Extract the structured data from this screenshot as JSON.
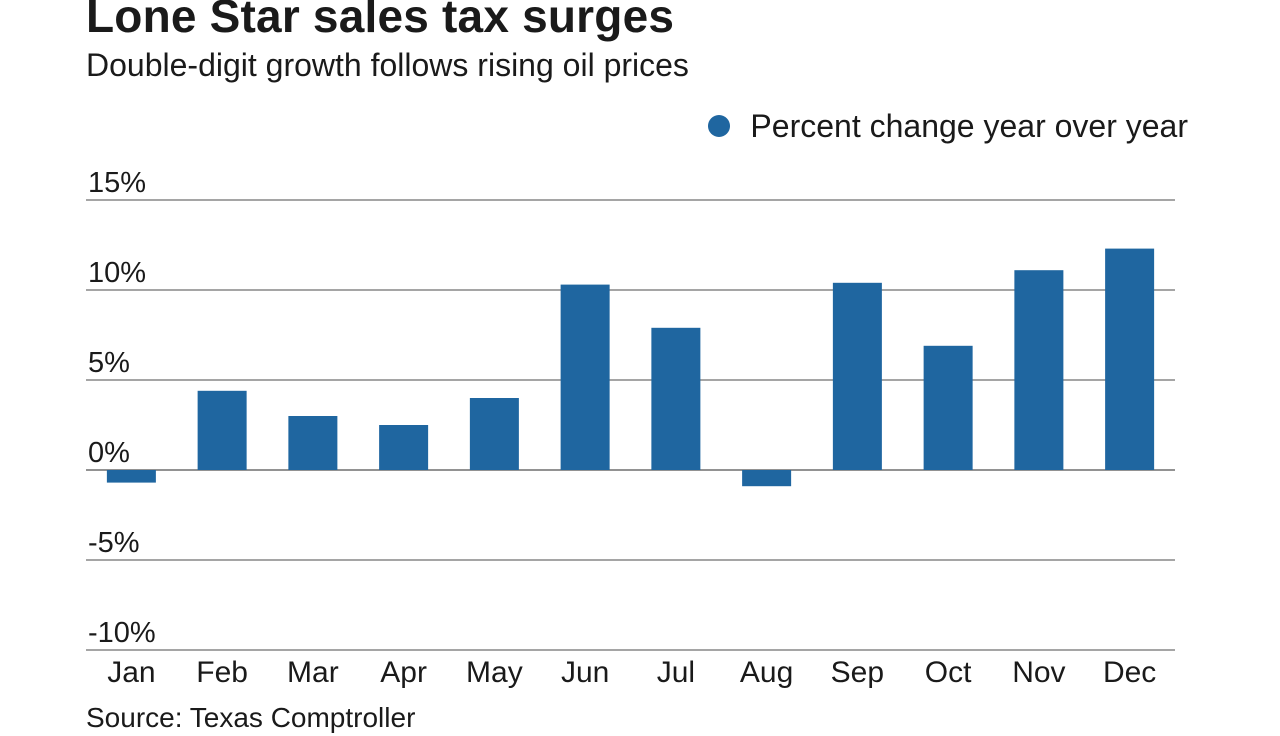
{
  "header": {
    "title": "Lone Star sales tax surges",
    "subtitle": "Double-digit growth follows rising oil prices"
  },
  "legend": {
    "label": "Percent change year over year"
  },
  "source": "Source: Texas Comptroller",
  "colors": {
    "bar": "#1f66a0",
    "grid": "#6f6f6f",
    "text": "#1a1a1a"
  },
  "chart_data": {
    "type": "bar",
    "title": "Lone Star sales tax surges",
    "subtitle": "Double-digit growth follows rising oil prices",
    "xlabel": "",
    "ylabel": "",
    "ylim": [
      -10,
      15
    ],
    "yticks": [
      15,
      10,
      5,
      0,
      -5,
      -10
    ],
    "ytick_labels": [
      "15%",
      "10%",
      "5%",
      "0%",
      "-5%",
      "-10%"
    ],
    "grid": true,
    "legend_position": "top-right",
    "categories": [
      "Jan",
      "Feb",
      "Mar",
      "Apr",
      "May",
      "Jun",
      "Jul",
      "Aug",
      "Sep",
      "Oct",
      "Nov",
      "Dec"
    ],
    "series": [
      {
        "name": "Percent change year over year",
        "values": [
          -0.7,
          4.4,
          3.0,
          2.5,
          4.0,
          10.3,
          7.9,
          -0.9,
          10.4,
          6.9,
          11.1,
          12.3
        ]
      }
    ]
  }
}
